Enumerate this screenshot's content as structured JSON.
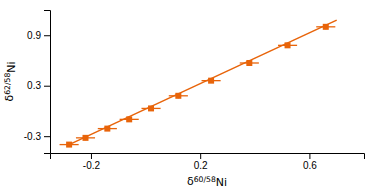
{
  "chart_data": {
    "type": "scatter",
    "x_label": "δ60/58Ni",
    "y_label": "δ62/58Ni",
    "xlim": [
      -0.35,
      0.8
    ],
    "ylim": [
      -0.5,
      1.2
    ],
    "xticks": [
      -0.2,
      0.2,
      0.6
    ],
    "yticks": [
      -0.3,
      0.3,
      0.9
    ],
    "grid": false,
    "series": [
      {
        "type": "scatter",
        "marker": "square",
        "color": "#E8640A",
        "x": [
          -0.28,
          -0.22,
          -0.14,
          -0.06,
          0.02,
          0.12,
          0.24,
          0.38,
          0.52,
          0.66
        ],
        "values": [
          -0.4,
          -0.32,
          -0.21,
          -0.1,
          0.03,
          0.18,
          0.36,
          0.57,
          0.78,
          1.0
        ],
        "x_error": 0.035,
        "y_error": 0.028
      },
      {
        "type": "line",
        "color": "#E8640A",
        "x": [
          -0.28,
          0.7
        ],
        "values": [
          -0.4,
          1.08
        ]
      }
    ]
  }
}
